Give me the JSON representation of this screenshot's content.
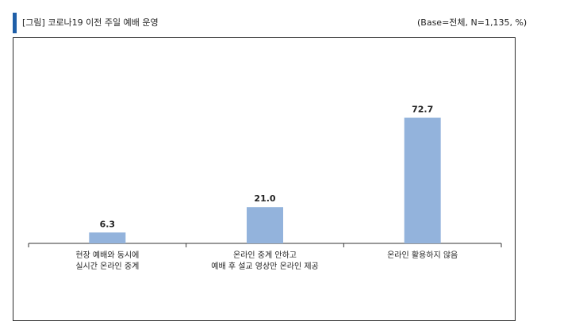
{
  "header": {
    "title": "[그림] 코로나19 이전 주일 예배 운영",
    "base_note": "(Base=전체, N=1,135, %)",
    "accent_color": "#1f5fa8"
  },
  "chart_data": {
    "type": "bar",
    "title": "[그림] 코로나19 이전 주일 예배 운영",
    "categories": [
      [
        "현장 예배와 동시에",
        "실시간 온라인 중계"
      ],
      [
        "온라인 중계 안하고",
        "예배 후 설교 영상만 온라인 제공"
      ],
      [
        "온라인 활용하지 않음"
      ]
    ],
    "values": [
      6.3,
      21.0,
      72.7
    ],
    "value_labels": [
      "6.3",
      "21.0",
      "72.7"
    ],
    "unit": "%",
    "ylim": [
      0,
      100
    ],
    "bar_color": "#93b3dc",
    "grid": false,
    "legend": "none"
  }
}
